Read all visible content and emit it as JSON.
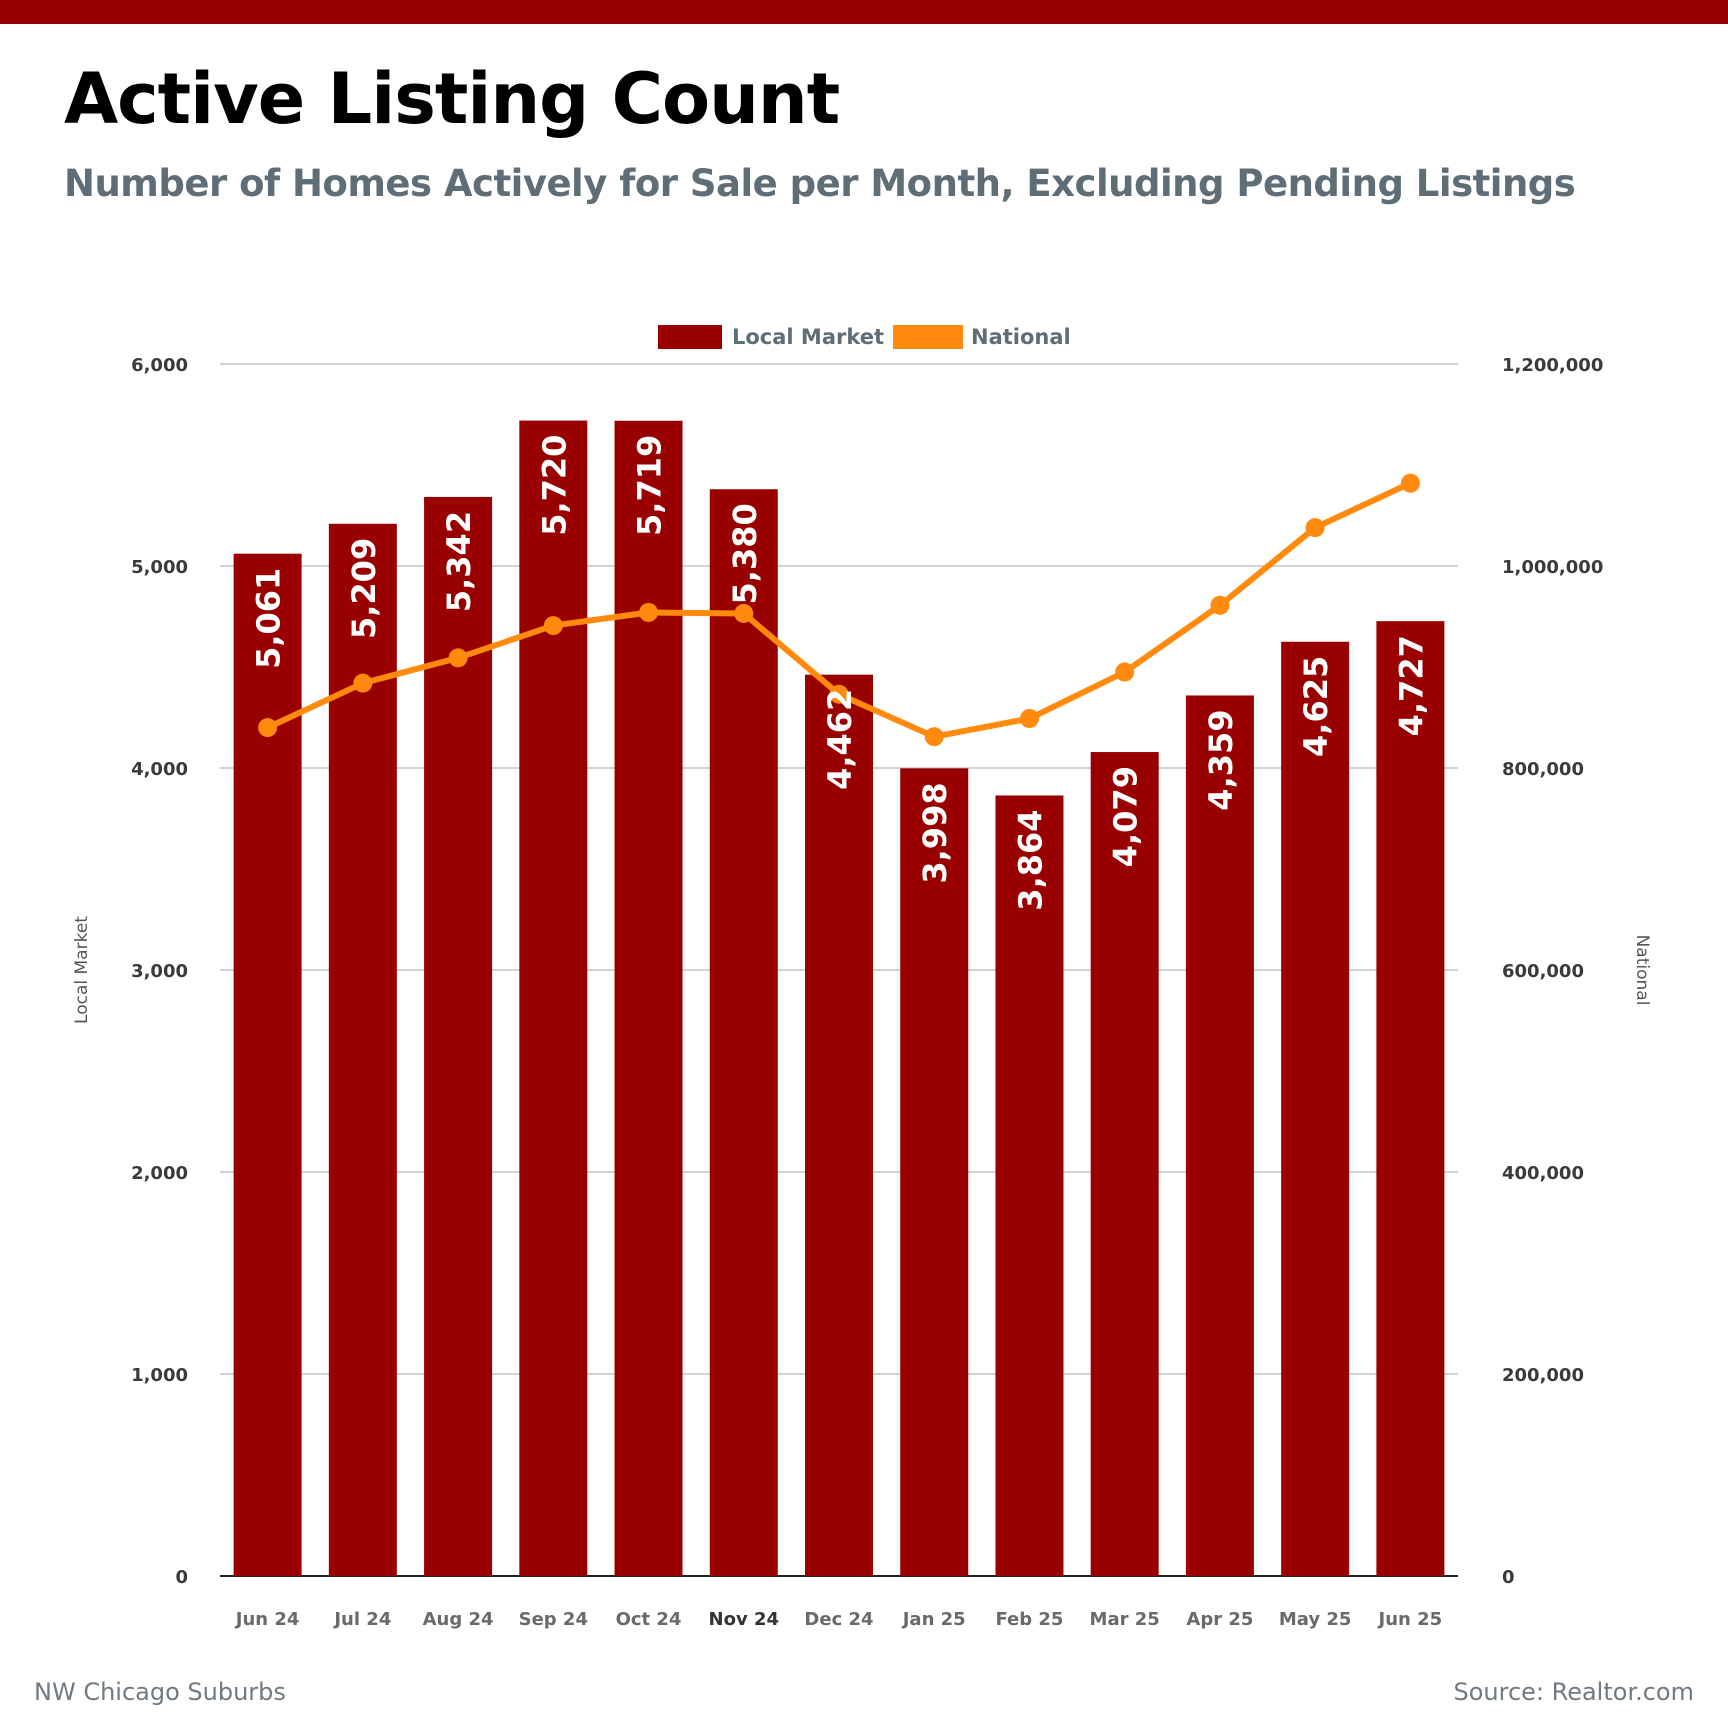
{
  "title": "Active Listing Count",
  "subtitle": "Number of Homes Actively for Sale per Month, Excluding Pending Listings",
  "footer": {
    "region": "NW Chicago Suburbs",
    "source": "Source: Realtor.com"
  },
  "colors": {
    "accent": "#990000",
    "line": "#ff8a0d",
    "subtitle": "#5f6e76",
    "axis_text": "#3a3a3a",
    "grid": "#b8b8b8"
  },
  "chart_data": {
    "type": "bar",
    "categories": [
      "Jun 24",
      "Jul 24",
      "Aug 24",
      "Sep 24",
      "Oct 24",
      "Nov 24",
      "Dec 24",
      "Jan 25",
      "Feb 25",
      "Mar 25",
      "Apr 25",
      "May 25",
      "Jun 25"
    ],
    "series": [
      {
        "name": "Local Market",
        "type": "bar",
        "axis": "left",
        "values": [
          5061,
          5209,
          5342,
          5720,
          5719,
          5380,
          4462,
          3998,
          3864,
          4079,
          4359,
          4625,
          4727
        ],
        "labels": [
          "5,061",
          "5,209",
          "5,342",
          "5,720",
          "5,719",
          "5,380",
          "4,462",
          "3,998",
          "3,864",
          "4,079",
          "4,359",
          "4,625",
          "4,727"
        ]
      },
      {
        "name": "National",
        "type": "line",
        "axis": "right",
        "values": [
          840000,
          884000,
          909000,
          941000,
          954000,
          953000,
          873000,
          831000,
          849000,
          895000,
          961000,
          1038000,
          1082000
        ]
      }
    ],
    "ylabel": "Local Market",
    "y2label": "National",
    "ylim": [
      0,
      6000
    ],
    "y2lim": [
      0,
      1200000
    ],
    "yticks": [
      "0",
      "1,000",
      "2,000",
      "3,000",
      "4,000",
      "5,000",
      "6,000"
    ],
    "y2ticks": [
      "0",
      "200,000",
      "400,000",
      "600,000",
      "800,000",
      "1,000,000",
      "1,200,000"
    ],
    "legend": "top-center",
    "grid": true
  }
}
